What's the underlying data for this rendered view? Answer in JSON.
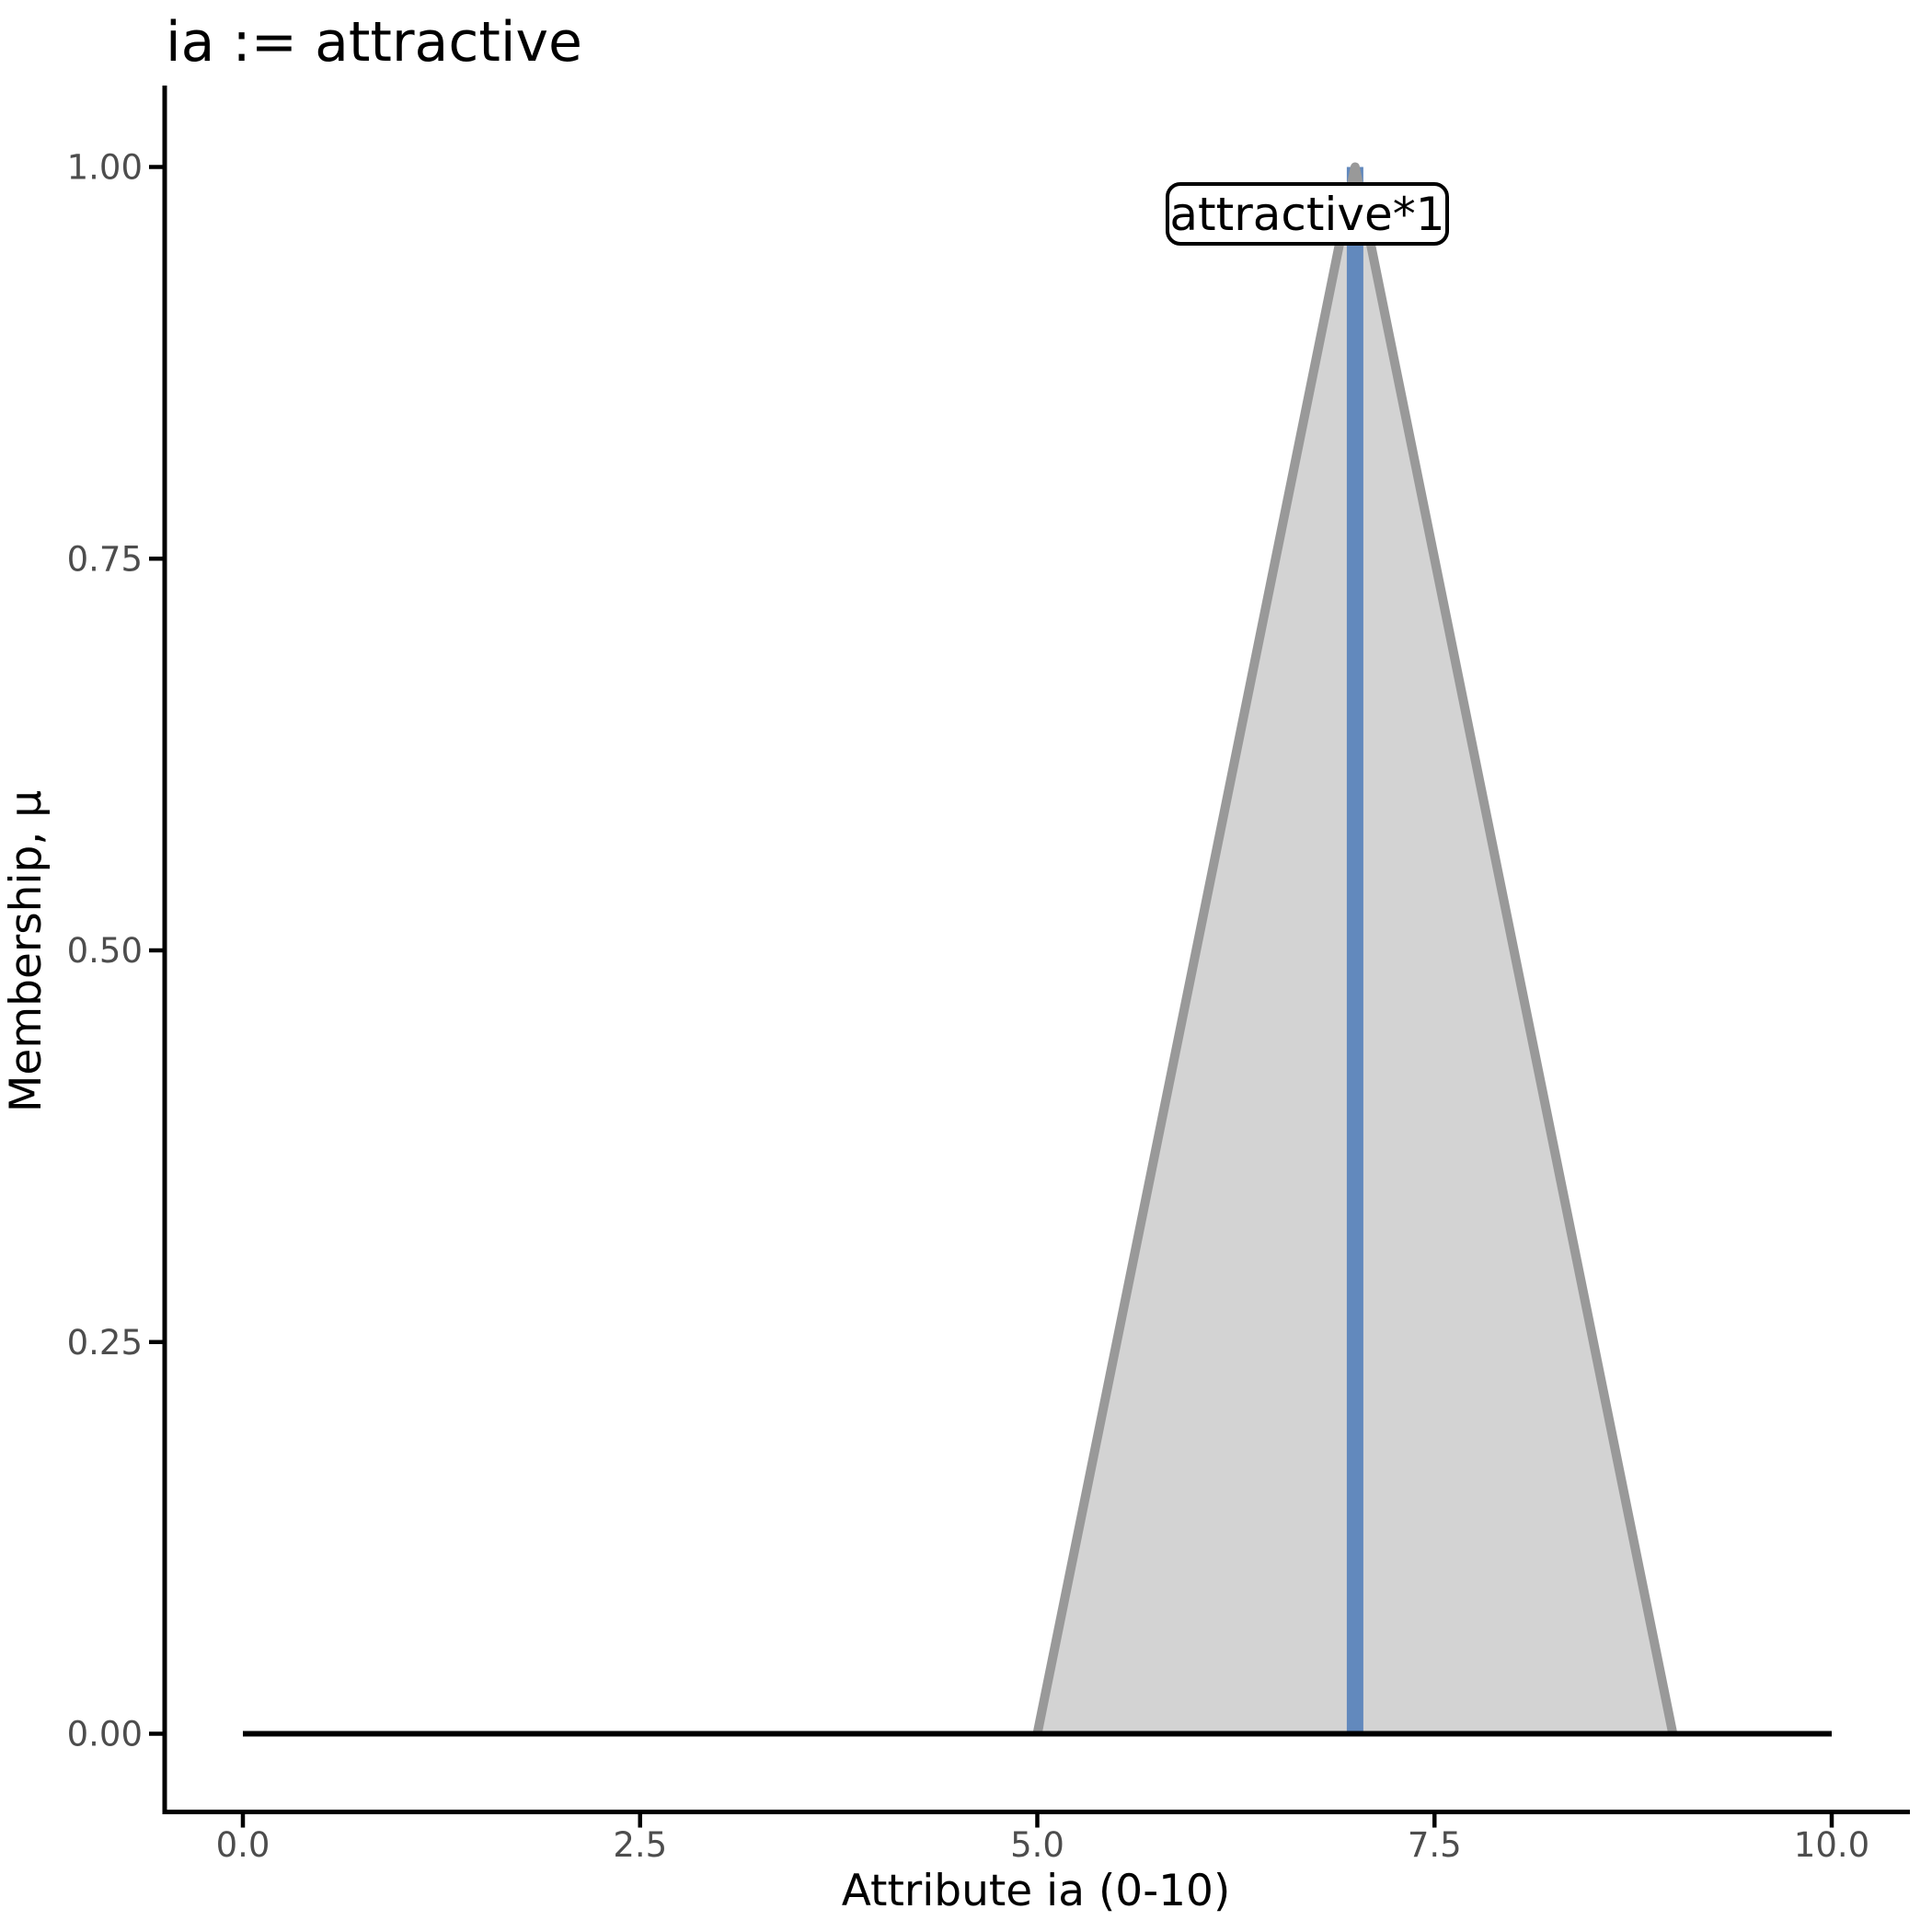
{
  "chart_data": {
    "type": "area",
    "title": "ia := attractive",
    "xlabel": "Attribute ia (0-10)",
    "ylabel": "Membership, μ",
    "xlim": [
      0,
      10
    ],
    "ylim": [
      0,
      1
    ],
    "grid": false,
    "legend": "none",
    "x_ticks": [
      {
        "value": 0.0,
        "label": "0.0"
      },
      {
        "value": 2.5,
        "label": "2.5"
      },
      {
        "value": 5.0,
        "label": "5.0"
      },
      {
        "value": 7.5,
        "label": "7.5"
      },
      {
        "value": 10.0,
        "label": "10.0"
      }
    ],
    "y_ticks": [
      {
        "value": 0.0,
        "label": "0.00"
      },
      {
        "value": 0.25,
        "label": "0.25"
      },
      {
        "value": 0.5,
        "label": "0.50"
      },
      {
        "value": 0.75,
        "label": "0.75"
      },
      {
        "value": 1.0,
        "label": "1.00"
      }
    ],
    "series": [
      {
        "name": "attractive-membership-triangle",
        "type": "area",
        "points": [
          [
            5,
            0
          ],
          [
            7,
            1
          ],
          [
            9,
            0
          ]
        ],
        "fill": "#D3D3D3",
        "stroke": "#999999",
        "stroke_width": 10
      },
      {
        "name": "peak-vline",
        "type": "vline",
        "x": 7,
        "y_from": 0,
        "y_to": 1,
        "color": "#6289BD",
        "width": 18
      },
      {
        "name": "universe-baseline",
        "type": "hline",
        "y": 0,
        "x_from": 0,
        "x_to": 10,
        "color": "#000000",
        "width": 6
      }
    ],
    "annotation": {
      "text": "attractive*1",
      "x": 7,
      "y": 0.97
    }
  },
  "colors": {
    "background": "#FFFFFF",
    "axis_line": "#000000",
    "tick_label": "#4D4D4D",
    "triangle_fill": "#D3D3D3",
    "triangle_stroke": "#999999",
    "peak_line": "#6289BD",
    "annotation_border": "#000000",
    "annotation_fill": "#FFFFFF"
  }
}
